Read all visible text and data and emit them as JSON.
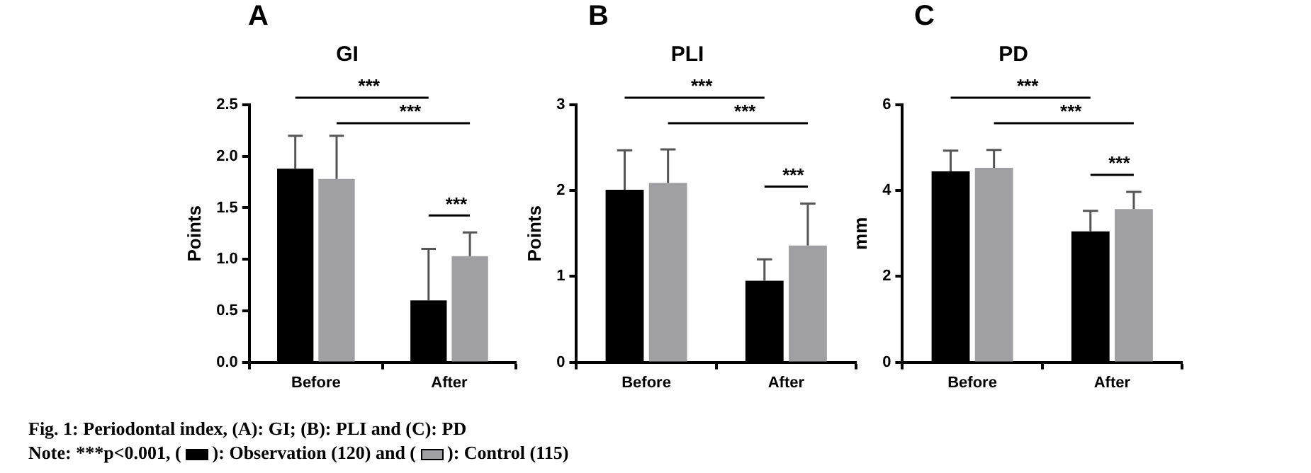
{
  "chart_data": [
    {
      "type": "bar",
      "title": "GI",
      "ylabel": "Points",
      "categories": [
        "Before",
        "After"
      ],
      "series": [
        {
          "color": "#000000",
          "values": [
            1.88,
            0.6
          ],
          "errors": [
            [
              1.88,
              2.2
            ],
            [
              0.6,
              1.1
            ]
          ]
        },
        {
          "color": "#a0a0a4",
          "values": [
            1.78,
            1.03
          ],
          "errors": [
            [
              1.78,
              2.2
            ],
            [
              1.03,
              1.26
            ]
          ]
        }
      ],
      "ylim": [
        0,
        2.5
      ],
      "yticks": [
        {
          "value": 0,
          "label": "0.0"
        },
        {
          "value": 0.5,
          "label": "0.5"
        },
        {
          "value": 1,
          "label": "1.0"
        },
        {
          "value": 1.5,
          "label": "1.5"
        },
        {
          "value": 2,
          "label": "2.0"
        },
        {
          "value": 2.5,
          "label": "2.5"
        }
      ],
      "grid": false,
      "annotations": [
        "A",
        "***",
        "***",
        "***",
        "Fig. 1: Periodontal index, (A): GI; (B): PLI and (C): PD",
        "Note: ***p<0.001, (",
        "): Observation (120) and (",
        "): Control (115)"
      ]
    },
    {
      "type": "bar",
      "title": "PLI",
      "ylabel": "Points",
      "categories": [
        "Before",
        "After"
      ],
      "series": [
        {
          "color": "#000000",
          "values": [
            2.01,
            0.95
          ],
          "errors": [
            [
              2.01,
              2.47
            ],
            [
              0.95,
              1.2
            ]
          ]
        },
        {
          "color": "#a0a0a4",
          "values": [
            2.09,
            1.36
          ],
          "errors": [
            [
              2.09,
              2.48
            ],
            [
              1.36,
              1.85
            ]
          ]
        }
      ],
      "ylim": [
        0,
        3
      ],
      "yticks": [
        0,
        1,
        2,
        3
      ],
      "grid": false,
      "annotations": [
        "B",
        "***",
        "***",
        "***"
      ]
    },
    {
      "type": "bar",
      "title": "PD",
      "ylabel": "mm",
      "categories": [
        "Before",
        "After"
      ],
      "series": [
        {
          "color": "#000000",
          "values": [
            4.45,
            3.05
          ],
          "errors": [
            [
              4.45,
              4.93
            ],
            [
              3.05,
              3.53
            ]
          ]
        },
        {
          "color": "#a0a0a4",
          "values": [
            4.53,
            3.57
          ],
          "errors": [
            [
              4.53,
              4.95
            ],
            [
              3.57,
              3.97
            ]
          ]
        }
      ],
      "ylim": [
        0,
        6
      ],
      "yticks": [
        0,
        2,
        4,
        6
      ],
      "grid": false,
      "annotations": [
        "C",
        "***",
        "***",
        "***"
      ]
    }
  ]
}
